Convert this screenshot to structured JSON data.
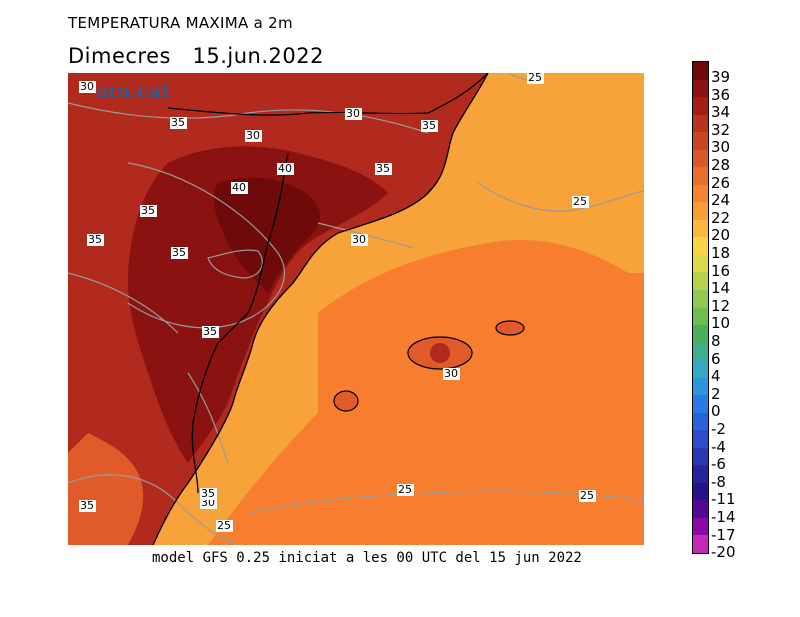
{
  "header": {
    "title": "TEMPERATURA MAXIMA a 2m",
    "subtitle": "Dimecres   15.jun.2022"
  },
  "footer": {
    "caption": "model GFS 0.25 iniciat a les 00 UTC del 15 jun 2022"
  },
  "map": {
    "brand": "ara.cat",
    "contour_labels": [
      {
        "text": "30"
      },
      {
        "text": "35"
      },
      {
        "text": "30"
      },
      {
        "text": "30"
      },
      {
        "text": "35"
      },
      {
        "text": "40"
      },
      {
        "text": "35"
      },
      {
        "text": "40"
      },
      {
        "text": "35"
      },
      {
        "text": "35"
      },
      {
        "text": "35"
      },
      {
        "text": "30"
      },
      {
        "text": "25"
      },
      {
        "text": "25"
      },
      {
        "text": "35"
      },
      {
        "text": "30"
      },
      {
        "text": "35"
      },
      {
        "text": "30"
      },
      {
        "text": "25"
      },
      {
        "text": "25"
      },
      {
        "text": "35"
      },
      {
        "text": "25"
      }
    ],
    "colors": {
      "ocean": "#f8a23a",
      "sea_warm": "#f67e2e",
      "land_hot": "#b22a1e",
      "land_very_hot": "#8a1210",
      "land_mild": "#e15a2a",
      "contour": "#9a9a9a",
      "border": "#000000"
    }
  },
  "legend": {
    "labels": [
      "39",
      "36",
      "34",
      "32",
      "30",
      "28",
      "26",
      "24",
      "22",
      "20",
      "18",
      "16",
      "14",
      "12",
      "10",
      "8",
      "6",
      "4",
      "2",
      "0",
      "-2",
      "-4",
      "-6",
      "-8",
      "-11",
      "-14",
      "-17",
      "-20"
    ],
    "colors": [
      "#6e0a0a",
      "#8b1212",
      "#a51e14",
      "#b8321c",
      "#c94622",
      "#d95a26",
      "#e86e2a",
      "#f4842e",
      "#f99e36",
      "#fbb83e",
      "#f7d448",
      "#dcd84c",
      "#b8d24e",
      "#92c850",
      "#6ebe54",
      "#4caf5e",
      "#3fae8e",
      "#36a8bf",
      "#2e94dc",
      "#2a7ae6",
      "#2a62dc",
      "#2e4ccc",
      "#2c38b2",
      "#26249a",
      "#241488",
      "#520a96",
      "#8a0aa6",
      "#c42ab8"
    ]
  }
}
